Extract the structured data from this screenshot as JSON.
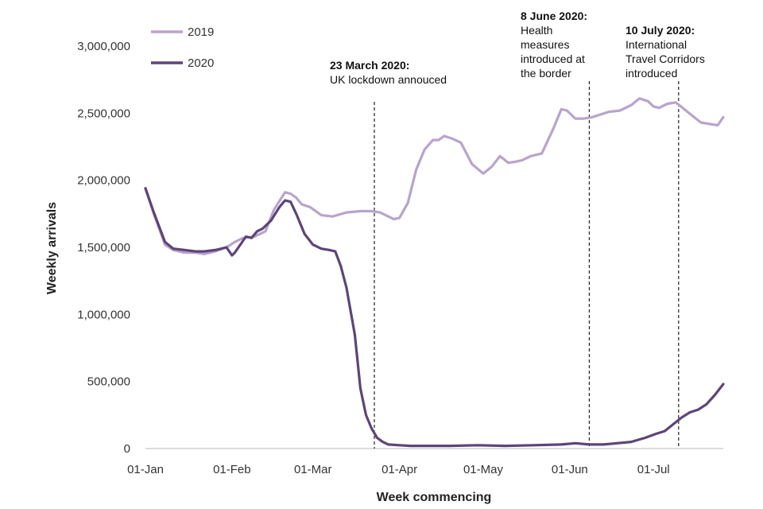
{
  "chart_data": {
    "type": "line",
    "xlabel": "Week commencing",
    "ylabel": "Weekly arrivals",
    "ylim": [
      0,
      3000000
    ],
    "y_ticks": [
      "0",
      "500,000",
      "1,000,000",
      "1,500,000",
      "2,000,000",
      "2,500,000",
      "3,000,000"
    ],
    "x_ticks": [
      "01-Jan",
      "01-Feb",
      "01-Mar",
      "01-Apr",
      "01-May",
      "01-Jun",
      "01-Jul"
    ],
    "x_range_days": [
      1,
      208
    ],
    "grid": false,
    "legend": "top-left",
    "series": [
      {
        "name": "2019",
        "color": "#b8a4cc",
        "x": [
          1,
          4,
          8,
          11,
          15,
          19,
          22,
          26,
          30,
          33,
          36,
          40,
          44,
          47,
          51,
          53,
          55,
          57,
          60,
          64,
          68,
          73,
          78,
          82,
          85,
          88,
          90,
          92,
          95,
          98,
          101,
          104,
          106,
          108,
          111,
          114,
          118,
          122,
          125,
          128,
          131,
          134,
          136,
          139,
          143,
          147,
          150,
          152,
          155,
          158,
          161,
          164,
          167,
          171,
          175,
          178,
          181,
          183,
          185,
          188,
          191,
          194,
          197,
          200,
          203,
          206,
          208
        ],
        "values": [
          1940000,
          1750000,
          1520000,
          1480000,
          1460000,
          1460000,
          1450000,
          1470000,
          1500000,
          1540000,
          1570000,
          1580000,
          1620000,
          1780000,
          1910000,
          1900000,
          1870000,
          1820000,
          1800000,
          1740000,
          1730000,
          1760000,
          1770000,
          1770000,
          1760000,
          1730000,
          1710000,
          1720000,
          1830000,
          2080000,
          2230000,
          2300000,
          2300000,
          2330000,
          2310000,
          2280000,
          2120000,
          2050000,
          2100000,
          2180000,
          2130000,
          2140000,
          2150000,
          2180000,
          2200000,
          2380000,
          2530000,
          2520000,
          2460000,
          2460000,
          2470000,
          2490000,
          2510000,
          2520000,
          2560000,
          2610000,
          2590000,
          2550000,
          2540000,
          2570000,
          2580000,
          2530000,
          2480000,
          2430000,
          2420000,
          2410000,
          2470000
        ]
      },
      {
        "name": "2020",
        "color": "#5c4579",
        "x": [
          1,
          4,
          8,
          11,
          15,
          19,
          22,
          26,
          30,
          32,
          33,
          35,
          37,
          39,
          41,
          43,
          46,
          49,
          51,
          53,
          55,
          58,
          61,
          64,
          67,
          69,
          71,
          73,
          76,
          78,
          80,
          82,
          84,
          86,
          88,
          92,
          96,
          100,
          110,
          120,
          130,
          140,
          150,
          155,
          160,
          165,
          170,
          175,
          180,
          184,
          187,
          190,
          193,
          196,
          199,
          202,
          205,
          208
        ],
        "values": [
          1940000,
          1760000,
          1540000,
          1490000,
          1480000,
          1470000,
          1470000,
          1480000,
          1500000,
          1440000,
          1460000,
          1520000,
          1580000,
          1570000,
          1620000,
          1640000,
          1700000,
          1800000,
          1850000,
          1840000,
          1750000,
          1600000,
          1520000,
          1490000,
          1480000,
          1470000,
          1360000,
          1200000,
          850000,
          450000,
          250000,
          150000,
          80000,
          50000,
          30000,
          25000,
          20000,
          20000,
          20000,
          25000,
          20000,
          25000,
          30000,
          40000,
          30000,
          30000,
          40000,
          50000,
          80000,
          110000,
          130000,
          180000,
          230000,
          270000,
          290000,
          330000,
          400000,
          480000
        ]
      }
    ],
    "annotations": [
      {
        "x": 83,
        "title": "23 March 2020:",
        "lines": [
          "UK lockdown annouced"
        ]
      },
      {
        "x": 160,
        "title": "8 June 2020:",
        "lines": [
          "Health",
          "measures",
          "introduced at",
          "the border"
        ]
      },
      {
        "x": 192,
        "title": "10 July 2020:",
        "lines": [
          "International",
          "Travel Corridors",
          "introduced"
        ]
      }
    ]
  }
}
